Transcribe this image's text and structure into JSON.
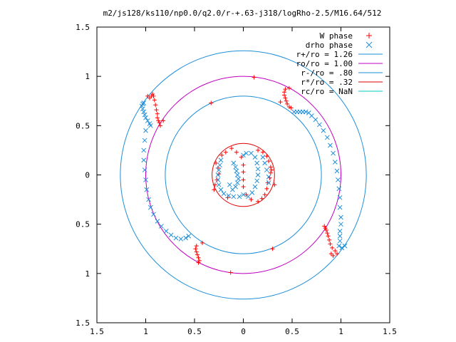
{
  "chart_data": {
    "type": "scatter",
    "title": "m2/js128/ks110/np0.0/q2.0/r-+.63-j318/logRho-2.5/M16.64/512",
    "xlim": [
      -1.5,
      1.5
    ],
    "ylim": [
      -1.5,
      1.5
    ],
    "x_ticks": [
      {
        "value": -1.5,
        "label": "1.5"
      },
      {
        "value": -1.0,
        "label": "1"
      },
      {
        "value": -0.5,
        "label": "0.5"
      },
      {
        "value": 0.0,
        "label": "0"
      },
      {
        "value": 0.5,
        "label": "0.5"
      },
      {
        "value": 1.0,
        "label": "1"
      },
      {
        "value": 1.5,
        "label": "1.5"
      }
    ],
    "y_ticks": [
      {
        "value": 1.5,
        "label": "1.5"
      },
      {
        "value": 1.0,
        "label": "1"
      },
      {
        "value": 0.5,
        "label": "0.5"
      },
      {
        "value": 0.0,
        "label": "0"
      },
      {
        "value": -0.5,
        "label": "0.5"
      },
      {
        "value": -1.0,
        "label": "1"
      },
      {
        "value": -1.5,
        "label": "1.5"
      }
    ],
    "grid": false,
    "legend_position": "top-right",
    "circles": [
      {
        "name": "r+/ro = 1.26",
        "r": 1.26,
        "color": "#1f8fd8"
      },
      {
        "name": "ro/ro = 1.00",
        "r": 1.0,
        "color": "#c000c0"
      },
      {
        "name": "r-/ro = .80",
        "r": 0.8,
        "color": "#1f8fd8"
      },
      {
        "name": "r*/ro = .32",
        "r": 0.32,
        "color": "#e00000"
      },
      {
        "name": "rc/ro = NaN",
        "r": null,
        "color": "#00c8c8"
      }
    ],
    "series": [
      {
        "name": "W phase",
        "marker": "plus",
        "color": "#ff0000",
        "points": [
          [
            0.11,
            0.99
          ],
          [
            0.47,
            0.88
          ],
          [
            -0.33,
            0.73
          ],
          [
            0.38,
            0.74
          ],
          [
            -0.82,
            0.55
          ],
          [
            -0.85,
            0.5
          ],
          [
            -0.94,
            0.8
          ],
          [
            -0.96,
            0.78
          ],
          [
            -0.98,
            0.8
          ],
          [
            -0.93,
            0.82
          ],
          [
            -0.92,
            0.8
          ],
          [
            -0.91,
            0.76
          ],
          [
            -0.9,
            0.71
          ],
          [
            -0.89,
            0.66
          ],
          [
            -0.88,
            0.62
          ],
          [
            -0.88,
            0.58
          ],
          [
            -0.87,
            0.55
          ],
          [
            -0.86,
            0.53
          ],
          [
            0.43,
            0.87
          ],
          [
            0.42,
            0.84
          ],
          [
            0.42,
            0.81
          ],
          [
            0.43,
            0.78
          ],
          [
            0.44,
            0.75
          ],
          [
            0.45,
            0.72
          ],
          [
            0.47,
            0.69
          ],
          [
            0.49,
            0.68
          ],
          [
            0.83,
            -0.52
          ],
          [
            0.84,
            -0.54
          ],
          [
            0.85,
            -0.56
          ],
          [
            0.86,
            -0.59
          ],
          [
            0.87,
            -0.62
          ],
          [
            0.88,
            -0.66
          ],
          [
            0.89,
            -0.7
          ],
          [
            0.91,
            -0.74
          ],
          [
            0.94,
            -0.77
          ],
          [
            0.96,
            -0.8
          ],
          [
            0.92,
            -0.82
          ],
          [
            0.9,
            -0.8
          ],
          [
            -0.42,
            -0.69
          ],
          [
            -0.48,
            -0.72
          ],
          [
            -0.49,
            -0.75
          ],
          [
            -0.48,
            -0.78
          ],
          [
            -0.47,
            -0.81
          ],
          [
            -0.46,
            -0.84
          ],
          [
            -0.45,
            -0.87
          ],
          [
            -0.46,
            -0.89
          ],
          [
            0.3,
            -0.75
          ],
          [
            -0.13,
            -0.99
          ],
          [
            -0.28,
            0.12
          ],
          [
            -0.26,
            0.07
          ],
          [
            -0.25,
            0.01
          ],
          [
            -0.27,
            -0.05
          ],
          [
            -0.29,
            -0.1
          ],
          [
            -0.3,
            -0.15
          ],
          [
            -0.22,
            0.2
          ],
          [
            -0.18,
            0.23
          ],
          [
            -0.12,
            0.27
          ],
          [
            -0.07,
            0.23
          ],
          [
            -0.02,
            0.18
          ],
          [
            0.0,
            0.1
          ],
          [
            0.0,
            0.03
          ],
          [
            0.15,
            0.25
          ],
          [
            0.2,
            0.23
          ],
          [
            0.24,
            0.19
          ],
          [
            0.26,
            0.14
          ],
          [
            0.28,
            0.08
          ],
          [
            0.28,
            0.02
          ],
          [
            0.27,
            -0.03
          ],
          [
            0.25,
            -0.08
          ],
          [
            0.24,
            -0.14
          ],
          [
            0.22,
            -0.2
          ],
          [
            0.19,
            -0.24
          ],
          [
            0.15,
            -0.27
          ],
          [
            0.08,
            -0.25
          ],
          [
            0.03,
            -0.2
          ],
          [
            0.0,
            -0.12
          ],
          [
            0.0,
            -0.05
          ],
          [
            0.32,
            -0.1
          ],
          [
            0.29,
            0.05
          ],
          [
            -0.16,
            -0.23
          ]
        ]
      },
      {
        "name": "drho phase",
        "marker": "cross",
        "color": "#1f8fd8",
        "points": [
          [
            -1.02,
            0.73
          ],
          [
            -1.03,
            0.72
          ],
          [
            -1.04,
            0.7
          ],
          [
            -1.03,
            0.67
          ],
          [
            -1.02,
            0.64
          ],
          [
            -1.01,
            0.61
          ],
          [
            -1.0,
            0.58
          ],
          [
            -0.98,
            0.55
          ],
          [
            -0.96,
            0.52
          ],
          [
            -0.95,
            0.5
          ],
          [
            -1.0,
            0.45
          ],
          [
            -1.01,
            0.35
          ],
          [
            -1.02,
            0.25
          ],
          [
            -1.02,
            0.15
          ],
          [
            -1.01,
            0.05
          ],
          [
            -1.0,
            -0.05
          ],
          [
            -0.99,
            -0.15
          ],
          [
            -0.97,
            -0.25
          ],
          [
            -0.95,
            -0.33
          ],
          [
            -0.92,
            -0.4
          ],
          [
            -0.88,
            -0.47
          ],
          [
            -0.84,
            -0.52
          ],
          [
            -0.79,
            -0.57
          ],
          [
            -0.74,
            -0.61
          ],
          [
            -0.69,
            -0.64
          ],
          [
            -0.64,
            -0.65
          ],
          [
            -0.59,
            -0.64
          ],
          [
            -0.56,
            -0.62
          ],
          [
            0.52,
            0.64
          ],
          [
            0.55,
            0.64
          ],
          [
            0.58,
            0.64
          ],
          [
            0.61,
            0.64
          ],
          [
            0.64,
            0.64
          ],
          [
            0.67,
            0.63
          ],
          [
            0.7,
            0.6
          ],
          [
            0.74,
            0.56
          ],
          [
            0.78,
            0.51
          ],
          [
            0.82,
            0.45
          ],
          [
            0.86,
            0.38
          ],
          [
            0.89,
            0.3
          ],
          [
            0.92,
            0.22
          ],
          [
            0.94,
            0.13
          ],
          [
            0.96,
            0.04
          ],
          [
            0.97,
            -0.05
          ],
          [
            0.98,
            -0.14
          ],
          [
            0.99,
            -0.23
          ],
          [
            0.99,
            -0.33
          ],
          [
            1.0,
            -0.43
          ],
          [
            1.0,
            -0.5
          ],
          [
            0.99,
            -0.57
          ],
          [
            0.99,
            -0.62
          ],
          [
            0.99,
            -0.67
          ],
          [
            0.98,
            -0.72
          ],
          [
            1.01,
            -0.74
          ],
          [
            1.04,
            -0.72
          ],
          [
            -0.1,
            0.12
          ],
          [
            -0.08,
            0.08
          ],
          [
            -0.07,
            0.04
          ],
          [
            -0.06,
            0.0
          ],
          [
            -0.05,
            -0.04
          ],
          [
            -0.06,
            -0.08
          ],
          [
            -0.08,
            -0.12
          ],
          [
            -0.11,
            -0.15
          ],
          [
            -0.14,
            -0.1
          ],
          [
            -0.23,
            0.15
          ],
          [
            -0.24,
            0.1
          ],
          [
            -0.25,
            0.05
          ],
          [
            -0.26,
            -0.0
          ],
          [
            -0.26,
            -0.05
          ],
          [
            -0.25,
            -0.1
          ],
          [
            -0.23,
            -0.15
          ],
          [
            -0.2,
            -0.19
          ],
          [
            -0.15,
            -0.21
          ],
          [
            -0.1,
            -0.22
          ],
          [
            -0.04,
            -0.22
          ],
          [
            0.0,
            -0.2
          ],
          [
            0.0,
            0.2
          ],
          [
            0.03,
            0.22
          ],
          [
            0.08,
            0.22
          ],
          [
            0.12,
            0.18
          ],
          [
            0.14,
            0.12
          ],
          [
            0.15,
            0.06
          ],
          [
            0.15,
            0.0
          ],
          [
            0.14,
            -0.06
          ],
          [
            0.12,
            -0.12
          ],
          [
            0.09,
            -0.18
          ],
          [
            0.05,
            -0.22
          ],
          [
            0.2,
            0.18
          ],
          [
            0.22,
            0.12
          ],
          [
            0.24,
            0.05
          ],
          [
            0.26,
            -0.02
          ],
          [
            0.26,
            -0.08
          ]
        ]
      }
    ]
  }
}
